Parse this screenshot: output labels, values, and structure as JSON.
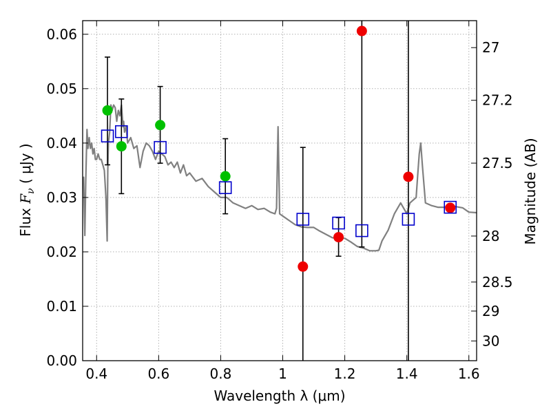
{
  "chart_data": {
    "type": "scatter",
    "title": "",
    "xlabel": "Wavelength  λ (μm)",
    "ylabel": "Flux  F_ν ( μJy )",
    "ylabel_parts": {
      "pre": "Flux  ",
      "var": "F",
      "sub": "ν",
      "post": "  ( μJy )"
    },
    "y2label": "Magnitude (AB)",
    "xlim": [
      0.355,
      1.625
    ],
    "ylim": [
      0.0,
      0.0625
    ],
    "grid": true,
    "colors": {
      "model": "#808080",
      "observed_high_sn": "#00c000",
      "observed_low_sn": "#ee0000",
      "model_photometry": "#0000cc",
      "errorbar": "#000000",
      "grid": "#b0b0b0",
      "frame": "#000000"
    },
    "x_ticks": [
      {
        "value": 0.4,
        "label": "0.4"
      },
      {
        "value": 0.6,
        "label": "0.6"
      },
      {
        "value": 0.8,
        "label": "0.8"
      },
      {
        "value": 1.0,
        "label": "1"
      },
      {
        "value": 1.2,
        "label": "1.2"
      },
      {
        "value": 1.4,
        "label": "1.4"
      },
      {
        "value": 1.6,
        "label": "1.6"
      }
    ],
    "y_ticks": [
      {
        "value": 0.0,
        "label": "0.00"
      },
      {
        "value": 0.01,
        "label": "0.01"
      },
      {
        "value": 0.02,
        "label": "0.02"
      },
      {
        "value": 0.03,
        "label": "0.03"
      },
      {
        "value": 0.04,
        "label": "0.04"
      },
      {
        "value": 0.05,
        "label": "0.05"
      },
      {
        "value": 0.06,
        "label": "0.06"
      }
    ],
    "mag_ticks": [
      {
        "value": 27,
        "label": "27"
      },
      {
        "value": 27.2,
        "label": "27.2"
      },
      {
        "value": 27.5,
        "label": "27.5"
      },
      {
        "value": 28,
        "label": "28"
      },
      {
        "value": 28.5,
        "label": "28.5"
      },
      {
        "value": 29,
        "label": "29"
      },
      {
        "value": 30,
        "label": "30"
      }
    ],
    "series": [
      {
        "name": "model_spectrum",
        "type": "line",
        "x": [
          0.355,
          0.358,
          0.362,
          0.365,
          0.369,
          0.372,
          0.376,
          0.38,
          0.384,
          0.388,
          0.392,
          0.396,
          0.4,
          0.405,
          0.41,
          0.415,
          0.42,
          0.425,
          0.43,
          0.434,
          0.436,
          0.438,
          0.442,
          0.446,
          0.45,
          0.455,
          0.46,
          0.465,
          0.47,
          0.475,
          0.48,
          0.485,
          0.487,
          0.49,
          0.495,
          0.5,
          0.51,
          0.52,
          0.53,
          0.54,
          0.55,
          0.56,
          0.57,
          0.58,
          0.59,
          0.6,
          0.61,
          0.62,
          0.63,
          0.64,
          0.65,
          0.66,
          0.67,
          0.68,
          0.69,
          0.7,
          0.72,
          0.74,
          0.76,
          0.78,
          0.8,
          0.82,
          0.84,
          0.86,
          0.88,
          0.9,
          0.92,
          0.94,
          0.96,
          0.975,
          0.98,
          0.985,
          0.99,
          1.0,
          1.02,
          1.04,
          1.06,
          1.08,
          1.1,
          1.12,
          1.14,
          1.16,
          1.18,
          1.2,
          1.22,
          1.24,
          1.26,
          1.28,
          1.3,
          1.31,
          1.32,
          1.34,
          1.36,
          1.38,
          1.4,
          1.41,
          1.42,
          1.43,
          1.435,
          1.44,
          1.445,
          1.45,
          1.46,
          1.48,
          1.5,
          1.52,
          1.54,
          1.56,
          1.58,
          1.6,
          1.625
        ],
        "y": [
          0.0335,
          0.0337,
          0.023,
          0.033,
          0.0425,
          0.039,
          0.041,
          0.039,
          0.04,
          0.038,
          0.039,
          0.037,
          0.037,
          0.038,
          0.037,
          0.037,
          0.036,
          0.035,
          0.03,
          0.022,
          0.035,
          0.04,
          0.042,
          0.047,
          0.046,
          0.047,
          0.0465,
          0.044,
          0.046,
          0.045,
          0.047,
          0.043,
          0.044,
          0.042,
          0.043,
          0.04,
          0.041,
          0.039,
          0.0395,
          0.0355,
          0.0385,
          0.04,
          0.0395,
          0.0385,
          0.037,
          0.0385,
          0.038,
          0.0375,
          0.036,
          0.0365,
          0.0355,
          0.0365,
          0.0345,
          0.036,
          0.034,
          0.0345,
          0.033,
          0.0335,
          0.032,
          0.031,
          0.03,
          0.03,
          0.029,
          0.0285,
          0.028,
          0.0285,
          0.0278,
          0.028,
          0.0273,
          0.027,
          0.028,
          0.043,
          0.027,
          0.0266,
          0.0258,
          0.025,
          0.0246,
          0.0245,
          0.0245,
          0.0238,
          0.0232,
          0.0226,
          0.0225,
          0.0225,
          0.0218,
          0.021,
          0.0207,
          0.0202,
          0.0202,
          0.0203,
          0.022,
          0.024,
          0.027,
          0.029,
          0.027,
          0.029,
          0.0295,
          0.03,
          0.034,
          0.038,
          0.04,
          0.036,
          0.029,
          0.0285,
          0.0282,
          0.0282,
          0.0285,
          0.0283,
          0.0281,
          0.0273,
          0.0272
        ]
      },
      {
        "name": "observed_high_sn",
        "type": "scatter",
        "x": [
          0.435,
          0.48,
          0.605,
          0.815
        ],
        "y": [
          0.046,
          0.0394,
          0.0433,
          0.0339
        ]
      },
      {
        "name": "observed_low_sn",
        "type": "scatter",
        "x": [
          1.065,
          1.18,
          1.255,
          1.405,
          1.54
        ],
        "y": [
          0.0173,
          0.0227,
          0.0606,
          0.0338,
          0.0281
        ]
      },
      {
        "name": "model_photometry",
        "type": "scatter",
        "x": [
          0.435,
          0.48,
          0.605,
          0.815,
          1.065,
          1.18,
          1.255,
          1.405,
          1.54
        ],
        "y": [
          0.0413,
          0.0421,
          0.0392,
          0.0318,
          0.026,
          0.0253,
          0.0239,
          0.026,
          0.0282
        ]
      },
      {
        "name": "error_bars",
        "type": "errorbar",
        "x": [
          0.435,
          0.48,
          0.605,
          0.815,
          1.065,
          1.18,
          1.255,
          1.405
        ],
        "low": [
          0.036,
          0.0307,
          0.0363,
          0.027,
          0.0,
          0.0192,
          0.0209,
          0.0
        ],
        "high": [
          0.0558,
          0.0481,
          0.0504,
          0.0408,
          0.0392,
          0.0263,
          0.0625,
          0.0625
        ]
      }
    ]
  }
}
